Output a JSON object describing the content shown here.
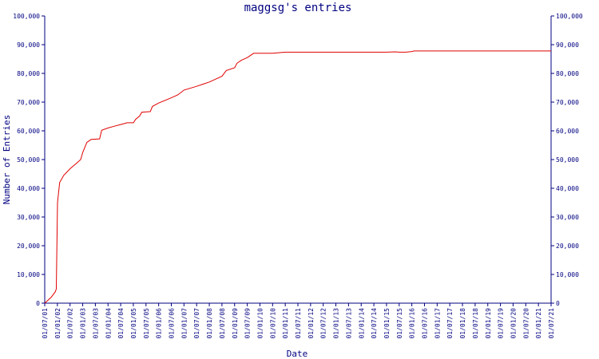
{
  "chart_data": {
    "type": "line",
    "title": "maggsg's entries",
    "xlabel": "Date",
    "ylabel": "Number of Entries",
    "ylim": [
      0,
      100000
    ],
    "y_ticks": [
      0,
      10000,
      20000,
      30000,
      40000,
      50000,
      60000,
      70000,
      80000,
      90000,
      100000
    ],
    "y_tick_labels": [
      "0",
      "10,000",
      "20,000",
      "30,000",
      "40,000",
      "50,000",
      "60,000",
      "70,000",
      "80,000",
      "90,000",
      "100,000"
    ],
    "x_tick_labels": [
      "01/07/01",
      "01/01/02",
      "01/07/02",
      "01/01/03",
      "01/07/03",
      "01/01/04",
      "01/07/04",
      "01/01/05",
      "01/07/05",
      "01/01/06",
      "01/07/06",
      "01/01/07",
      "01/07/07",
      "01/01/08",
      "01/07/08",
      "01/01/09",
      "01/07/09",
      "01/01/10",
      "01/07/10",
      "01/01/11",
      "01/07/11",
      "01/01/12",
      "01/07/12",
      "01/01/13",
      "01/07/13",
      "01/01/14",
      "01/07/14",
      "01/01/15",
      "01/07/15",
      "01/01/16",
      "01/07/16",
      "01/01/17",
      "01/07/17",
      "01/01/18",
      "01/07/18",
      "01/01/19",
      "01/07/19",
      "01/01/20",
      "01/07/20",
      "01/01/21",
      "01/07/21"
    ],
    "grid": false,
    "series": [
      {
        "color": "#e00000",
        "x": [
          "2001-07-01",
          "2001-10-01",
          "2001-12-01",
          "2001-12-15",
          "2002-01-01",
          "2002-02-01",
          "2002-04-01",
          "2002-07-01",
          "2002-10-01",
          "2002-12-01",
          "2003-01-01",
          "2003-03-01",
          "2003-05-01",
          "2003-09-01",
          "2003-10-01",
          "2004-01-01",
          "2004-04-01",
          "2004-07-01",
          "2004-10-01",
          "2005-01-01",
          "2005-02-01",
          "2005-04-01",
          "2005-05-01",
          "2005-09-01",
          "2005-10-01",
          "2006-01-01",
          "2006-07-01",
          "2006-10-01",
          "2006-12-01",
          "2007-01-01",
          "2007-07-01",
          "2008-01-01",
          "2008-04-01",
          "2008-07-01",
          "2008-09-01",
          "2009-01-01",
          "2009-02-01",
          "2009-04-01",
          "2009-07-01",
          "2009-10-01",
          "2010-01-01",
          "2010-07-01",
          "2011-01-01",
          "2012-01-01",
          "2013-01-01",
          "2014-01-01",
          "2015-01-01",
          "2015-05-01",
          "2015-07-01",
          "2015-10-01",
          "2016-01-01",
          "2016-02-01",
          "2016-07-01",
          "2017-01-01",
          "2018-01-01",
          "2019-01-01",
          "2020-01-01",
          "2021-01-01",
          "2021-07-01"
        ],
        "values": [
          0,
          2000,
          4000,
          5000,
          35000,
          42000,
          44500,
          46800,
          48700,
          50000,
          52500,
          56000,
          57000,
          57200,
          60200,
          61000,
          61600,
          62200,
          62800,
          62800,
          64000,
          65200,
          66500,
          66700,
          68500,
          69700,
          71500,
          72500,
          73600,
          74200,
          75500,
          77000,
          78000,
          79000,
          81000,
          82000,
          83500,
          84500,
          85500,
          87000,
          87000,
          87000,
          87400,
          87400,
          87400,
          87400,
          87400,
          87500,
          87400,
          87400,
          87600,
          87800,
          87800,
          87800,
          87800,
          87800,
          87800,
          87800,
          87800
        ]
      }
    ]
  }
}
